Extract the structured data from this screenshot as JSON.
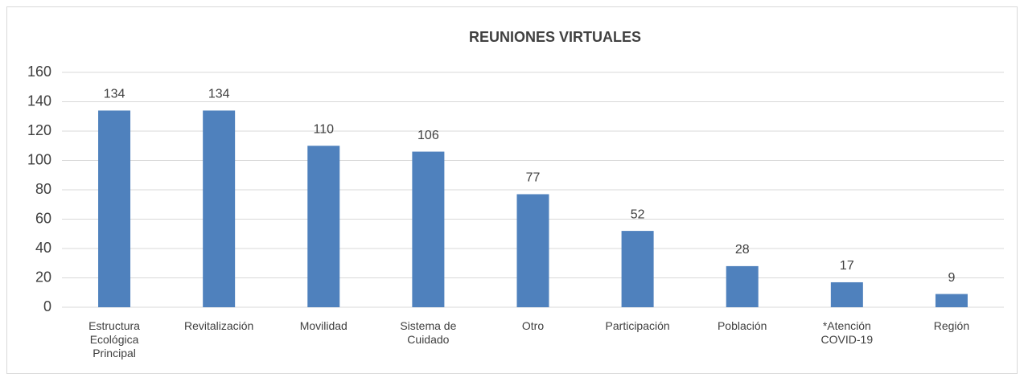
{
  "chart_data": {
    "type": "bar",
    "title": "REUNIONES VIRTUALES",
    "categories": [
      "Estructura Ecológica Principal",
      "Revitalización",
      "Movilidad",
      "Sistema de Cuidado",
      "Otro",
      "Participación",
      "Población",
      "*Atención COVID-19",
      "Región"
    ],
    "values": [
      134,
      134,
      110,
      106,
      77,
      52,
      28,
      17,
      9
    ],
    "color": "#4f81bd",
    "ylim": [
      0,
      160
    ],
    "yticks": [
      0,
      20,
      40,
      60,
      80,
      100,
      120,
      140,
      160
    ],
    "grid": true
  }
}
